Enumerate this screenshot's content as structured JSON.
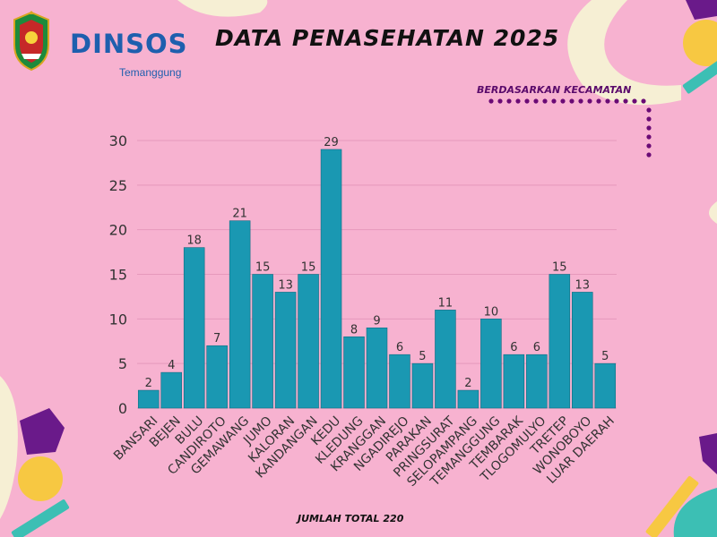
{
  "header": {
    "brand": "DINSOS",
    "brand_sub": "Temanggung",
    "title": "DATA PENASEHATAN 2025",
    "subtitle": "BERDASARKAN KECAMATAN"
  },
  "footer": {
    "total_label": "JUMLAH TOTAL 220"
  },
  "colors": {
    "background": "#f7b2d0",
    "bar": "#1a98b2",
    "brand_blue": "#1e5fae",
    "dots": "#6a0a75"
  },
  "chart_data": {
    "type": "bar",
    "categories": [
      "BANSARI",
      "BEJEN",
      "BULU",
      "CANDIROTO",
      "GEMAWANG",
      "JUMO",
      "KALORAN",
      "KANDANGAN",
      "KEDU",
      "KLEDUNG",
      "KRANGGAN",
      "NGADIREJO",
      "PARAKAN",
      "PRINGSURAT",
      "SELOPAMPANG",
      "TEMANGGUNG",
      "TEMBARAK",
      "TLOGOMULYO",
      "TRETEP",
      "WONOBOYO",
      "LUAR DAERAH"
    ],
    "values": [
      2,
      4,
      18,
      7,
      21,
      15,
      13,
      15,
      29,
      8,
      9,
      6,
      5,
      11,
      2,
      10,
      6,
      6,
      15,
      13,
      5
    ],
    "yticks": [
      0,
      5,
      10,
      15,
      20,
      25,
      30
    ],
    "ylim": [
      0,
      30
    ],
    "grid": true,
    "data_labels": true
  }
}
